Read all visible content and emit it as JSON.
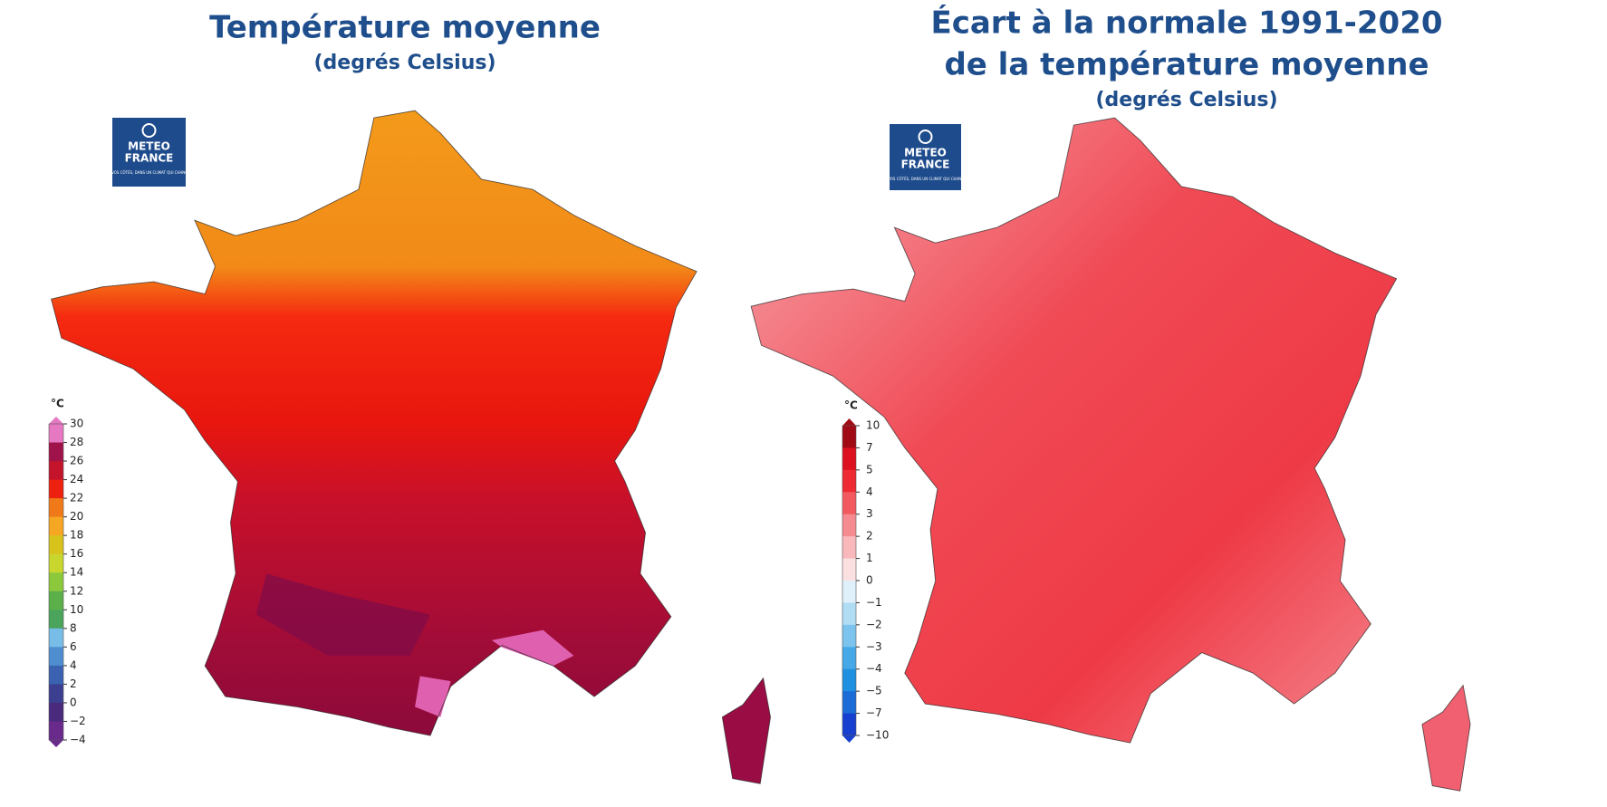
{
  "panels": [
    {
      "title": [
        "Température moyenne"
      ],
      "subtitle": "(degrés Celsius)",
      "logo": {
        "name": [
          "METEO",
          "FRANCE"
        ],
        "tagline": "À VOS CÔTÉS, DANS UN CLIMAT QUI CHANGE"
      },
      "legend": {
        "unit": "°C",
        "ticks": [
          "30",
          "28",
          "26",
          "24",
          "22",
          "20",
          "18",
          "16",
          "14",
          "12",
          "10",
          "8",
          "6",
          "4",
          "2",
          "0",
          "−2",
          "−4"
        ],
        "colors": [
          "#e678c2",
          "#a0124a",
          "#c3142c",
          "#ee2010",
          "#f07a1a",
          "#f5a623",
          "#d8c21c",
          "#c8d62e",
          "#8cc83c",
          "#5cb04a",
          "#4aa45c",
          "#78bde8",
          "#4e8ed0",
          "#3a62b0",
          "#3c3e90",
          "#4a2a7c",
          "#6a2a8c"
        ]
      }
    },
    {
      "title": [
        "Écart à la normale 1991-2020",
        "de la température moyenne"
      ],
      "subtitle": "(degrés Celsius)",
      "logo": {
        "name": [
          "METEO",
          "FRANCE"
        ],
        "tagline": "À VOS CÔTÉS, DANS UN CLIMAT QUI CHANGE"
      },
      "legend": {
        "unit": "°C",
        "ticks": [
          "10",
          "7",
          "5",
          "4",
          "3",
          "2",
          "1",
          "0",
          "−1",
          "−2",
          "−3",
          "−4",
          "−5",
          "−7",
          "−10"
        ],
        "colors": [
          "#a00a14",
          "#dd1020",
          "#ee2a32",
          "#f25a60",
          "#f58a90",
          "#f8b8bc",
          "#fbe0e2",
          "#dff0fb",
          "#b0dcf4",
          "#7cc4ee",
          "#46a8e6",
          "#2090e0",
          "#1c6cd8",
          "#1840d0"
        ]
      }
    }
  ]
}
